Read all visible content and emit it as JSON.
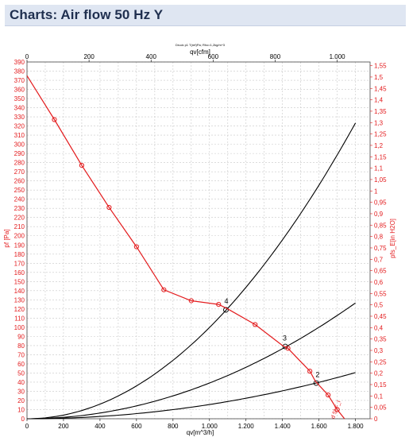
{
  "header": {
    "title": "Charts: Air flow 50 Hz Y"
  },
  "colors": {
    "header_bg": "#dfe6f2",
    "header_text": "#1f2f4f",
    "fan_curve": "#e31a1c",
    "system_curve": "#000000",
    "grid": "#c8c8c8"
  },
  "chart_data": {
    "type": "line",
    "subtitle": "Druck p1 T(ref)Pa; Rho=1,2kg/m^3",
    "xlabel_bottom": "qv[m^3/h]",
    "xlabel_top": "qv[cfm]",
    "ylabel_left": "pf [Pa]",
    "ylabel_right": "pfs_E[in H2O]",
    "xlim": [
      0,
      1880
    ],
    "ylim": [
      0,
      390
    ],
    "top_xlim_cfm": [
      0,
      1106
    ],
    "right_ylim": [
      0,
      1.566
    ],
    "grid": true,
    "x_ticks": [
      "0",
      "200",
      "400",
      "600",
      "800",
      "1.000",
      "1.200",
      "1.400",
      "1.600",
      "1.800"
    ],
    "top_ticks": [
      "0",
      "200",
      "400",
      "600",
      "800",
      "1.000"
    ],
    "y_ticks": [
      "0",
      "10",
      "20",
      "30",
      "40",
      "50",
      "60",
      "70",
      "80",
      "90",
      "100",
      "110",
      "120",
      "130",
      "140",
      "150",
      "160",
      "170",
      "180",
      "190",
      "200",
      "210",
      "220",
      "230",
      "240",
      "250",
      "260",
      "270",
      "280",
      "290",
      "300",
      "310",
      "320",
      "330",
      "340",
      "350",
      "360",
      "370",
      "380",
      "390"
    ],
    "right_ticks": [
      "0",
      "0,05",
      "0,1",
      "0,15",
      "0,2",
      "0,25",
      "0,3",
      "0,35",
      "0,4",
      "0,45",
      "0,5",
      "0,55",
      "0,6",
      "0,65",
      "0,7",
      "0,75",
      "0,8",
      "0,85",
      "0,9",
      "0,95",
      "1",
      "1,05",
      "1,1",
      "1,15",
      "1,2",
      "1,25",
      "1,3",
      "1,35",
      "1,4",
      "1,45",
      "1,5",
      "1,55"
    ],
    "fan_curve": {
      "name": "Air flow 50 Hz Y",
      "x": [
        0,
        150,
        300,
        450,
        600,
        750,
        900,
        1050,
        1100,
        1250,
        1400,
        1430,
        1550,
        1580,
        1650,
        1700,
        1740
      ],
      "y": [
        375,
        327,
        277,
        231,
        188,
        141,
        129,
        125,
        120,
        103,
        80,
        77,
        52,
        41,
        26,
        10,
        0
      ],
      "markers_x": [
        150,
        300,
        450,
        600,
        750,
        900,
        1050,
        1250,
        1430,
        1550,
        1650,
        1700
      ],
      "markers_y": [
        327,
        277,
        231,
        188,
        141,
        129,
        125,
        103,
        77,
        52,
        26,
        10
      ]
    },
    "system_curves": [
      {
        "label": "4",
        "k": 9.979e-05,
        "x_end": 1800,
        "op_x": 1090,
        "op_y": 119
      },
      {
        "label": "3",
        "k": 3.907e-05,
        "x_end": 1800,
        "op_x": 1415,
        "op_y": 79
      },
      {
        "label": "2",
        "k": 1.557e-05,
        "x_end": 1800,
        "op_x": 1585,
        "op_y": 39
      }
    ],
    "annotations": [
      {
        "text": "4",
        "x": 1090,
        "y": 124
      },
      {
        "text": "3",
        "x": 1410,
        "y": 84
      },
      {
        "text": "2",
        "x": 1590,
        "y": 44
      },
      {
        "text": "d 5f F_I",
        "x": 1700,
        "y": 4
      }
    ]
  }
}
